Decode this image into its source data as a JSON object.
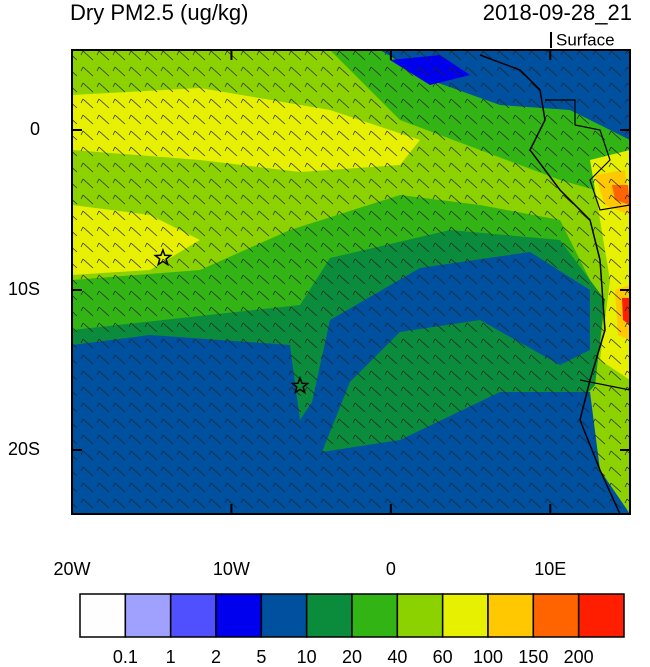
{
  "header": {
    "title": "Dry PM2.5 (ug/kg)",
    "timestamp": "2018-09-28_21",
    "level": "Surface"
  },
  "map": {
    "lonlim": [
      -20,
      15
    ],
    "latlim": [
      -24,
      5
    ],
    "lon_ticks": [
      {
        "value": -20,
        "label": "20W"
      },
      {
        "value": -10,
        "label": "10W"
      },
      {
        "value": 0,
        "label": "0"
      },
      {
        "value": 10,
        "label": "10E"
      }
    ],
    "lat_ticks": [
      {
        "value": 0,
        "label": "0"
      },
      {
        "value": -10,
        "label": "10S"
      },
      {
        "value": -20,
        "label": "20S"
      }
    ],
    "markers": [
      {
        "lon": -14.3,
        "lat": -8
      },
      {
        "lon": -5.7,
        "lat": -16
      }
    ]
  },
  "colorbar": {
    "colors": [
      "#fefefe",
      "#a0a0ff",
      "#5050ff",
      "#0000ee",
      "#0050a0",
      "#0a8c3c",
      "#32b414",
      "#8cd200",
      "#e6f000",
      "#ffc800",
      "#ff6400",
      "#ff1e00"
    ],
    "labels": [
      "0.1",
      "1",
      "2",
      "5",
      "10",
      "20",
      "40",
      "60",
      "100",
      "150",
      "200"
    ]
  }
}
